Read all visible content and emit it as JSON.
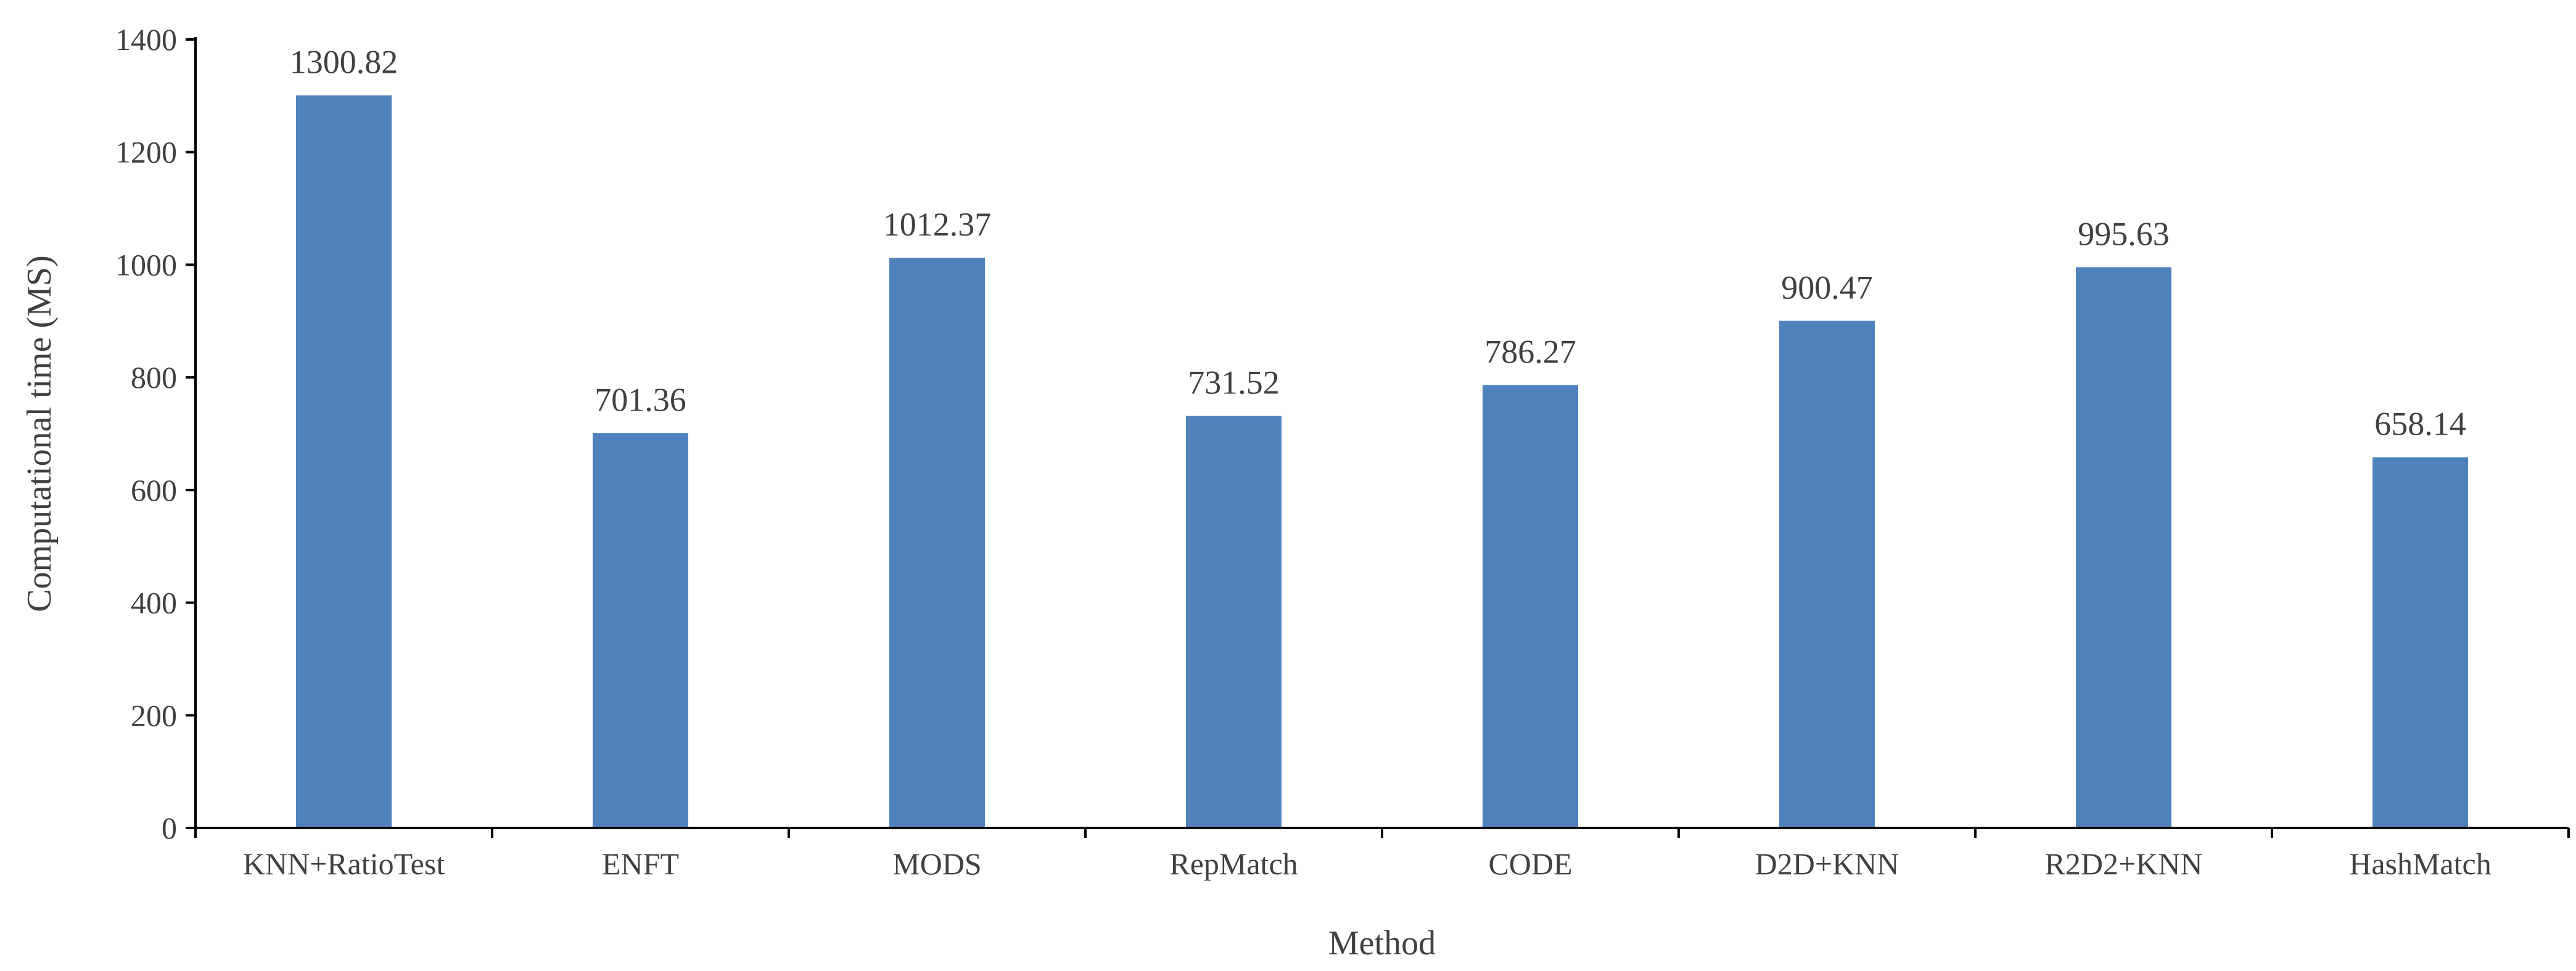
{
  "chart_data": {
    "type": "bar",
    "title": "",
    "xlabel": "Method",
    "ylabel": "Computational time (MS)",
    "categories": [
      "KNN+RatioTest",
      "ENFT",
      "MODS",
      "RepMatch",
      "CODE",
      "D2D+KNN",
      "R2D2+KNN",
      "HashMatch"
    ],
    "values": [
      1300.82,
      701.36,
      1012.37,
      731.52,
      786.27,
      900.47,
      995.63,
      658.14
    ],
    "data_labels": [
      "1300.82",
      "701.36",
      "1012.37",
      "731.52",
      "786.27",
      "900.47",
      "995.63",
      "658.14"
    ],
    "ylim": [
      0,
      1400
    ],
    "yticks": [
      0,
      200,
      400,
      600,
      800,
      1000,
      1200,
      1400
    ],
    "ytick_labels": [
      "0",
      "200",
      "400",
      "600",
      "800",
      "1000",
      "1200",
      "1400"
    ],
    "grid": false,
    "legend": "none",
    "bar_color": "#4F81BD",
    "axis_color": "#000000",
    "text_color": "#404040"
  }
}
